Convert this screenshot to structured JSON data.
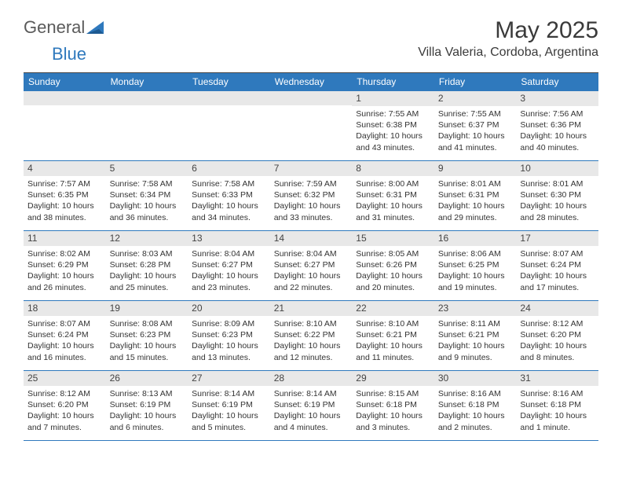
{
  "brand": {
    "part1": "General",
    "part2": "Blue"
  },
  "colors": {
    "accent": "#2f79bd",
    "header_text": "#ffffff",
    "daybar_bg": "#e8e8e8",
    "rule": "#2f79bd"
  },
  "title": "May 2025",
  "location": "Villa Valeria, Cordoba, Argentina",
  "weekdays": [
    "Sunday",
    "Monday",
    "Tuesday",
    "Wednesday",
    "Thursday",
    "Friday",
    "Saturday"
  ],
  "layout": {
    "columns": 7,
    "first_weekday_index": 4,
    "days_in_month": 31
  },
  "days": [
    {
      "n": 1,
      "sunrise": "7:55 AM",
      "sunset": "6:38 PM",
      "daylight": "10 hours and 43 minutes."
    },
    {
      "n": 2,
      "sunrise": "7:55 AM",
      "sunset": "6:37 PM",
      "daylight": "10 hours and 41 minutes."
    },
    {
      "n": 3,
      "sunrise": "7:56 AM",
      "sunset": "6:36 PM",
      "daylight": "10 hours and 40 minutes."
    },
    {
      "n": 4,
      "sunrise": "7:57 AM",
      "sunset": "6:35 PM",
      "daylight": "10 hours and 38 minutes."
    },
    {
      "n": 5,
      "sunrise": "7:58 AM",
      "sunset": "6:34 PM",
      "daylight": "10 hours and 36 minutes."
    },
    {
      "n": 6,
      "sunrise": "7:58 AM",
      "sunset": "6:33 PM",
      "daylight": "10 hours and 34 minutes."
    },
    {
      "n": 7,
      "sunrise": "7:59 AM",
      "sunset": "6:32 PM",
      "daylight": "10 hours and 33 minutes."
    },
    {
      "n": 8,
      "sunrise": "8:00 AM",
      "sunset": "6:31 PM",
      "daylight": "10 hours and 31 minutes."
    },
    {
      "n": 9,
      "sunrise": "8:01 AM",
      "sunset": "6:31 PM",
      "daylight": "10 hours and 29 minutes."
    },
    {
      "n": 10,
      "sunrise": "8:01 AM",
      "sunset": "6:30 PM",
      "daylight": "10 hours and 28 minutes."
    },
    {
      "n": 11,
      "sunrise": "8:02 AM",
      "sunset": "6:29 PM",
      "daylight": "10 hours and 26 minutes."
    },
    {
      "n": 12,
      "sunrise": "8:03 AM",
      "sunset": "6:28 PM",
      "daylight": "10 hours and 25 minutes."
    },
    {
      "n": 13,
      "sunrise": "8:04 AM",
      "sunset": "6:27 PM",
      "daylight": "10 hours and 23 minutes."
    },
    {
      "n": 14,
      "sunrise": "8:04 AM",
      "sunset": "6:27 PM",
      "daylight": "10 hours and 22 minutes."
    },
    {
      "n": 15,
      "sunrise": "8:05 AM",
      "sunset": "6:26 PM",
      "daylight": "10 hours and 20 minutes."
    },
    {
      "n": 16,
      "sunrise": "8:06 AM",
      "sunset": "6:25 PM",
      "daylight": "10 hours and 19 minutes."
    },
    {
      "n": 17,
      "sunrise": "8:07 AM",
      "sunset": "6:24 PM",
      "daylight": "10 hours and 17 minutes."
    },
    {
      "n": 18,
      "sunrise": "8:07 AM",
      "sunset": "6:24 PM",
      "daylight": "10 hours and 16 minutes."
    },
    {
      "n": 19,
      "sunrise": "8:08 AM",
      "sunset": "6:23 PM",
      "daylight": "10 hours and 15 minutes."
    },
    {
      "n": 20,
      "sunrise": "8:09 AM",
      "sunset": "6:23 PM",
      "daylight": "10 hours and 13 minutes."
    },
    {
      "n": 21,
      "sunrise": "8:10 AM",
      "sunset": "6:22 PM",
      "daylight": "10 hours and 12 minutes."
    },
    {
      "n": 22,
      "sunrise": "8:10 AM",
      "sunset": "6:21 PM",
      "daylight": "10 hours and 11 minutes."
    },
    {
      "n": 23,
      "sunrise": "8:11 AM",
      "sunset": "6:21 PM",
      "daylight": "10 hours and 9 minutes."
    },
    {
      "n": 24,
      "sunrise": "8:12 AM",
      "sunset": "6:20 PM",
      "daylight": "10 hours and 8 minutes."
    },
    {
      "n": 25,
      "sunrise": "8:12 AM",
      "sunset": "6:20 PM",
      "daylight": "10 hours and 7 minutes."
    },
    {
      "n": 26,
      "sunrise": "8:13 AM",
      "sunset": "6:19 PM",
      "daylight": "10 hours and 6 minutes."
    },
    {
      "n": 27,
      "sunrise": "8:14 AM",
      "sunset": "6:19 PM",
      "daylight": "10 hours and 5 minutes."
    },
    {
      "n": 28,
      "sunrise": "8:14 AM",
      "sunset": "6:19 PM",
      "daylight": "10 hours and 4 minutes."
    },
    {
      "n": 29,
      "sunrise": "8:15 AM",
      "sunset": "6:18 PM",
      "daylight": "10 hours and 3 minutes."
    },
    {
      "n": 30,
      "sunrise": "8:16 AM",
      "sunset": "6:18 PM",
      "daylight": "10 hours and 2 minutes."
    },
    {
      "n": 31,
      "sunrise": "8:16 AM",
      "sunset": "6:18 PM",
      "daylight": "10 hours and 1 minute."
    }
  ],
  "labels": {
    "sunrise": "Sunrise:",
    "sunset": "Sunset:",
    "daylight": "Daylight:"
  }
}
